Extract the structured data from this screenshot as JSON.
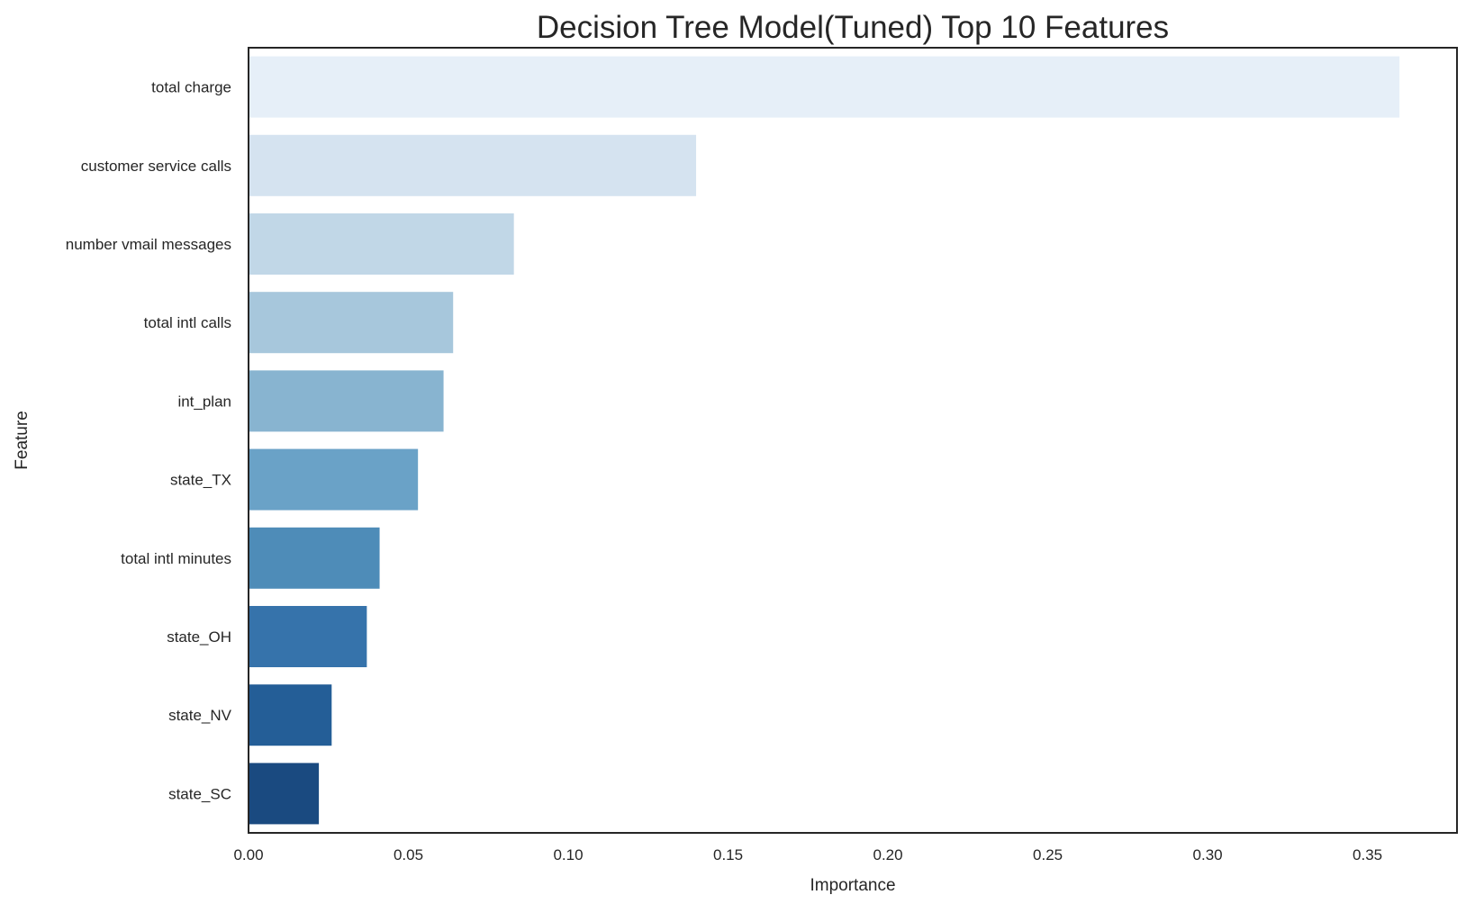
{
  "chart_data": {
    "type": "bar",
    "orientation": "horizontal",
    "title": "Decision Tree Model(Tuned) Top 10 Features",
    "xlabel": "Importance",
    "ylabel": "Feature",
    "xlim": [
      0,
      0.378
    ],
    "xticks": [
      "0.00",
      "0.05",
      "0.10",
      "0.15",
      "0.20",
      "0.25",
      "0.30",
      "0.35"
    ],
    "grid": false,
    "categories": [
      "total charge",
      "customer service calls",
      "number vmail messages",
      "total intl calls",
      "int_plan",
      "state_TX",
      "total intl minutes",
      "state_OH",
      "state_NV",
      "state_SC"
    ],
    "values": [
      0.36,
      0.14,
      0.083,
      0.064,
      0.061,
      0.053,
      0.041,
      0.037,
      0.026,
      0.022
    ],
    "colors": [
      "#e6eff8",
      "#d5e3f0",
      "#c1d7e7",
      "#a7c7dc",
      "#88b4d0",
      "#6aa2c7",
      "#4e8cb8",
      "#3673ab",
      "#245e97",
      "#1a4a80"
    ]
  }
}
